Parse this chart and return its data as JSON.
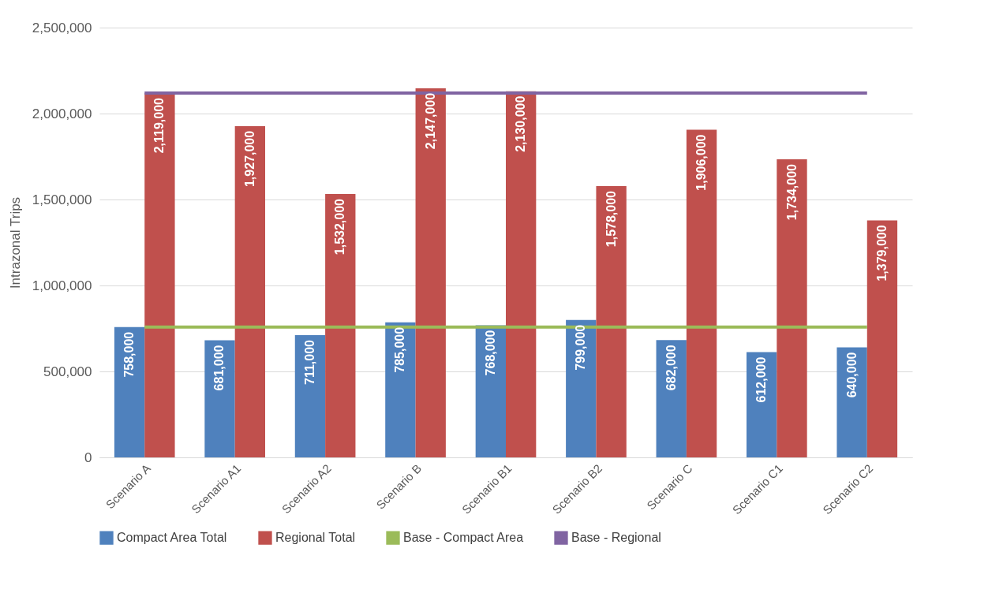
{
  "chart_data": {
    "type": "bar",
    "ylabel": "Intrazonal Trips",
    "categories": [
      "Scenario A",
      "Scenario A1",
      "Scenario A2",
      "Scenario B",
      "Scenario B1",
      "Scenario B2",
      "Scenario C",
      "Scenario C1",
      "Scenario C2"
    ],
    "series": [
      {
        "name": "Compact Area Total",
        "color": "#4f81bd",
        "values": [
          758000,
          681000,
          711000,
          785000,
          768000,
          799000,
          682000,
          612000,
          640000
        ],
        "value_labels": [
          "758,000",
          "681,000",
          "711,000",
          "785,000",
          "768,000",
          "799,000",
          "682,000",
          "612,000",
          "640,000"
        ]
      },
      {
        "name": "Regional Total",
        "color": "#c0504d",
        "values": [
          2119000,
          1927000,
          1532000,
          2147000,
          2130000,
          1578000,
          1906000,
          1734000,
          1379000
        ],
        "value_labels": [
          "2,119,000",
          "1,927,000",
          "1,532,000",
          "2,147,000",
          "2,130,000",
          "1,578,000",
          "1,906,000",
          "1,734,000",
          "1,379,000"
        ]
      },
      {
        "name": "Base - Compact Area",
        "type": "line",
        "color": "#9bbb59",
        "values": [
          758000,
          758000,
          758000,
          758000,
          758000,
          758000,
          758000,
          758000,
          758000
        ]
      },
      {
        "name": "Base - Regional",
        "type": "line",
        "color": "#8064a2",
        "values": [
          2119000,
          2119000,
          2119000,
          2119000,
          2119000,
          2119000,
          2119000,
          2119000,
          2119000
        ]
      }
    ],
    "ylim": [
      0,
      2500000
    ],
    "yticks": [
      {
        "value": 0,
        "label": "0"
      },
      {
        "value": 500000,
        "label": "500,000"
      },
      {
        "value": 1000000,
        "label": "1,000,000"
      },
      {
        "value": 1500000,
        "label": "1,500,000"
      },
      {
        "value": 2000000,
        "label": "2,000,000"
      },
      {
        "value": 2500000,
        "label": "2,500,000"
      }
    ],
    "grid": "y",
    "legend": "bottom",
    "marker": "none",
    "line_style": "solid"
  }
}
